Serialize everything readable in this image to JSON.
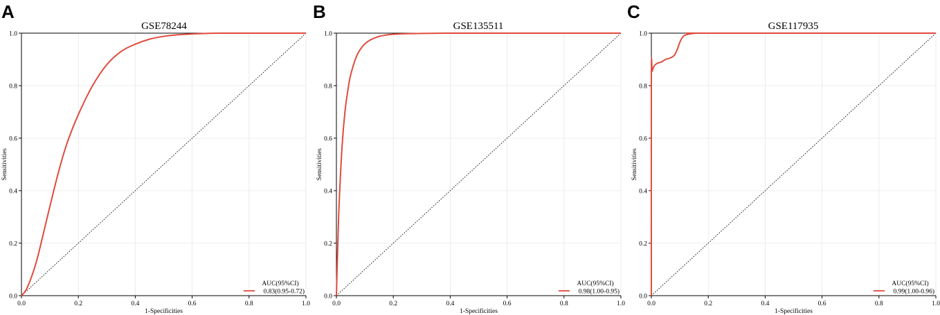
{
  "colors": {
    "roc_line": "#e04a3c",
    "grid": "#e6e6e6",
    "diagonal": "#000000"
  },
  "chart_data": [
    {
      "panel": "A",
      "type": "line",
      "title": "GSE78244",
      "xlabel": "1-Specificities",
      "ylabel": "Sensitivities",
      "xlim": [
        0,
        1
      ],
      "ylim": [
        0,
        1
      ],
      "x_ticks": [
        "0.0",
        "0.2",
        "0.4",
        "0.6",
        "0.8",
        "1.0"
      ],
      "y_ticks": [
        "0.0",
        "0.2",
        "0.4",
        "0.6",
        "0.8",
        "1.0"
      ],
      "grid": true,
      "legend_position": "bottom-right",
      "legend_title": "AUC(95%CI)",
      "legend_label": "0.83(0.95-0.72)",
      "reference_line": "diagonal",
      "series": [
        {
          "x": [
            0,
            0.02,
            0.05,
            0.08,
            0.1,
            0.13,
            0.16,
            0.2,
            0.25,
            0.3,
            0.35,
            0.4,
            0.45,
            0.5,
            0.55,
            0.6,
            0.65,
            0.7,
            0.8,
            1.0
          ],
          "y": [
            0,
            0.03,
            0.12,
            0.25,
            0.34,
            0.47,
            0.58,
            0.69,
            0.8,
            0.88,
            0.93,
            0.958,
            0.977,
            0.988,
            0.994,
            0.997,
            0.999,
            1.0,
            1.0,
            1.0
          ]
        }
      ]
    },
    {
      "panel": "B",
      "type": "line",
      "title": "GSE135511",
      "xlabel": "1-Specificities",
      "ylabel": "Sensitivities",
      "xlim": [
        0,
        1
      ],
      "ylim": [
        0,
        1
      ],
      "x_ticks": [
        "0.0",
        "0.2",
        "0.4",
        "0.6",
        "0.8",
        "1.0"
      ],
      "y_ticks": [
        "0.0",
        "0.2",
        "0.4",
        "0.6",
        "0.8",
        "1.0"
      ],
      "grid": true,
      "legend_position": "bottom-right",
      "legend_title": "AUC(95%CI)",
      "legend_label": "0.98(1.00-0.95)",
      "reference_line": "diagonal",
      "series": [
        {
          "x": [
            0,
            0.005,
            0.01,
            0.02,
            0.03,
            0.04,
            0.05,
            0.07,
            0.09,
            0.11,
            0.14,
            0.17,
            0.2,
            0.25,
            0.3,
            0.4,
            0.5,
            1.0
          ],
          "y": [
            0,
            0.2,
            0.36,
            0.57,
            0.7,
            0.78,
            0.84,
            0.91,
            0.947,
            0.968,
            0.984,
            0.992,
            0.996,
            0.998,
            0.999,
            1.0,
            1.0,
            1.0
          ]
        }
      ]
    },
    {
      "panel": "C",
      "type": "line",
      "title": "GSE117935",
      "xlabel": "1-Specificities",
      "ylabel": "Sensitivities",
      "xlim": [
        0,
        1
      ],
      "ylim": [
        0,
        1
      ],
      "x_ticks": [
        "0.0",
        "0.2",
        "0.4",
        "0.6",
        "0.8",
        "1.0"
      ],
      "y_ticks": [
        "0.0",
        "0.2",
        "0.4",
        "0.6",
        "0.8",
        "1.0"
      ],
      "grid": true,
      "legend_position": "bottom-right",
      "legend_title": "AUC(95%CI)",
      "legend_label": "0.99(1.00-0.96)",
      "reference_line": "diagonal",
      "series": [
        {
          "x": [
            0,
            0,
            0.003,
            0.01,
            0.02,
            0.035,
            0.05,
            0.065,
            0.08,
            0.09,
            0.1,
            0.11,
            0.12,
            0.14,
            0.16,
            0.2,
            1.0
          ],
          "y": [
            0,
            0.83,
            0.855,
            0.875,
            0.885,
            0.89,
            0.9,
            0.905,
            0.915,
            0.935,
            0.965,
            0.985,
            0.993,
            0.998,
            1.0,
            1.0,
            1.0
          ]
        }
      ]
    }
  ]
}
